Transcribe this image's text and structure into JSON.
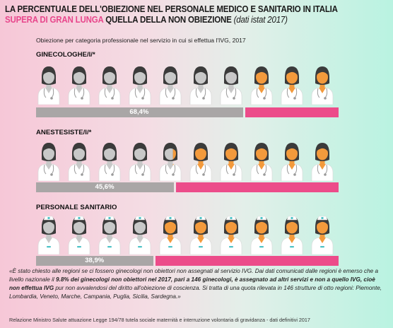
{
  "title": {
    "part1": "LA PERCENTUALE DELL'OBIEZIONE NEL PERSONALE MEDICO E SANITARIO IN ITALIA ",
    "highlight": "SUPERA DI GRAN LUNGA",
    "part2": " QUELLA DELLA NON OBIEZIONE ",
    "source_note": "(dati istat 2017)"
  },
  "subtitle": "Obiezione per categoria professionale nel servizio in cui si effettua l'IVG, 2017",
  "colors": {
    "objector_bar": "#a9a6a6",
    "non_objector_bar": "#ec4c8a",
    "objector_icon": "#c8c8c8",
    "non_objector_icon": "#f39a3c",
    "hair": "#3b3b3b",
    "highlight_text": "#e8478c"
  },
  "chart_data": [
    {
      "type": "bar",
      "category": "GINECOLOGHE/I/*",
      "objector_percent": 68.4,
      "value_label": "68,4%",
      "icons_total": 10,
      "icons_objector": 7,
      "icon_type": "doctor"
    },
    {
      "type": "bar",
      "category": "ANESTESISTE/I/*",
      "objector_percent": 45.6,
      "value_label": "45,6%",
      "icons_total": 10,
      "icons_objector": 4.6,
      "icon_type": "doctor"
    },
    {
      "type": "bar",
      "category": "PERSONALE SANITARIO",
      "objector_percent": 38.9,
      "value_label": "38,9%",
      "icons_total": 10,
      "icons_objector": 3.9,
      "icon_type": "nurse"
    }
  ],
  "footer": {
    "q1": "«È stato chiesto alle regioni se ci fossero ginecologi non obiettori non assegnati al servizio IVG. Dai dati comunicati dalle regioni è emerso che a livello nazionale il ",
    "q2": "9.8% dei ginecologi non obiettori nel 2017, pari a 146 ginecologi, è assegnato ad altri servizi e non a quello IVG, cioè non effettua IVG",
    "q3": " pur non avvalendosi del diritto all'obiezione di coscienza. Si tratta di una quota rilevata in 146 strutture di otto regioni: Piemonte, Lombardia, Veneto, Marche, Campania, Puglia, Sicilia, Sardegna.»",
    "source": "Relazione Ministro Salute attuazione Legge 194/78 tutela sociale maternità e interruzione volontaria di gravidanza - dati definitivi 2017"
  }
}
